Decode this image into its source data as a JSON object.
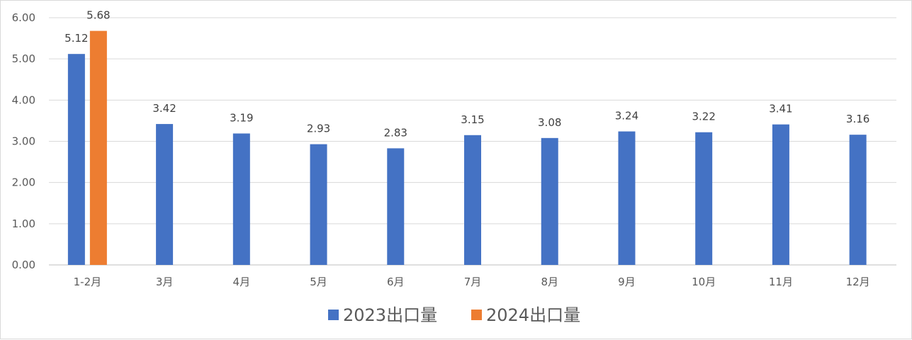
{
  "chart_data": {
    "type": "bar",
    "title": "",
    "xlabel": "",
    "ylabel": "",
    "ylim": [
      0,
      6
    ],
    "yticks": [
      "0.00",
      "1.00",
      "2.00",
      "3.00",
      "4.00",
      "5.00",
      "6.00"
    ],
    "grid": true,
    "legend_position": "bottom",
    "categories": [
      "1-2月",
      "3月",
      "4月",
      "5月",
      "6月",
      "7月",
      "8月",
      "9月",
      "10月",
      "11月",
      "12月"
    ],
    "series": [
      {
        "name": "2023出口量",
        "color": "#4472c4",
        "values": [
          5.12,
          3.42,
          3.19,
          2.93,
          2.83,
          3.15,
          3.08,
          3.24,
          3.22,
          3.41,
          3.16
        ],
        "labels": [
          "5.12",
          "3.42",
          "3.19",
          "2.93",
          "2.83",
          "3.15",
          "3.08",
          "3.24",
          "3.22",
          "3.41",
          "3.16"
        ]
      },
      {
        "name": "2024出口量",
        "color": "#ed7d31",
        "values": [
          5.68,
          null,
          null,
          null,
          null,
          null,
          null,
          null,
          null,
          null,
          null
        ],
        "labels": [
          "5.68",
          null,
          null,
          null,
          null,
          null,
          null,
          null,
          null,
          null,
          null
        ]
      }
    ]
  }
}
